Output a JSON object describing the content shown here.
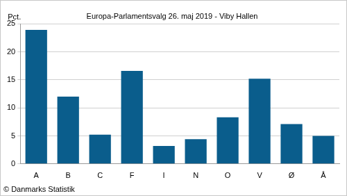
{
  "chart_data": {
    "type": "bar",
    "title": "Europa-Parlamentsvalg 26. maj 2019 - Viby Hallen",
    "ylabel": "Pct.",
    "source": "© Danmarks Statistik",
    "categories": [
      "A",
      "B",
      "C",
      "F",
      "I",
      "N",
      "O",
      "V",
      "Ø",
      "Å"
    ],
    "values": [
      23.9,
      12.0,
      5.2,
      16.6,
      3.2,
      4.4,
      8.3,
      15.2,
      7.1,
      5.0
    ],
    "color": "#0a5d8c",
    "ylim": [
      0,
      25
    ],
    "yticks": [
      0,
      5,
      10,
      15,
      20,
      25
    ],
    "grid": true
  }
}
